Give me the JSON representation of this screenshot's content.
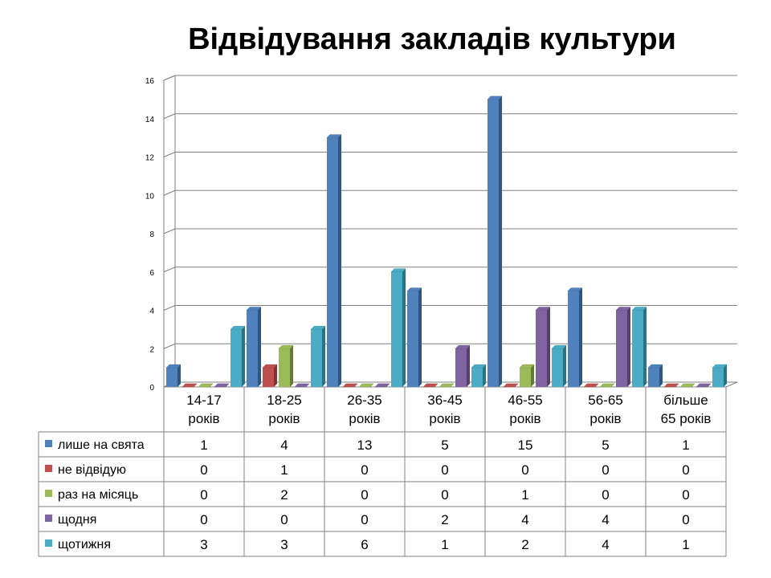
{
  "chart_data": {
    "type": "bar",
    "title": "Відвідування закладів культури",
    "categories": [
      [
        "14-17",
        "років"
      ],
      [
        "18-25",
        "років"
      ],
      [
        "26-35",
        "років"
      ],
      [
        "36-45",
        "років"
      ],
      [
        "46-55",
        "років"
      ],
      [
        "56-65",
        "років"
      ],
      [
        "більше",
        "65 років"
      ]
    ],
    "series": [
      {
        "name": "лише на свята",
        "color": "#4f81bd",
        "values": [
          1,
          4,
          13,
          5,
          15,
          5,
          1
        ]
      },
      {
        "name": "не відвідую",
        "color": "#c0504d",
        "values": [
          0,
          1,
          0,
          0,
          0,
          0,
          0
        ]
      },
      {
        "name": "раз на місяць",
        "color": "#9bbb59",
        "values": [
          0,
          2,
          0,
          0,
          1,
          0,
          0
        ]
      },
      {
        "name": "щодня",
        "color": "#8064a2",
        "values": [
          0,
          0,
          0,
          2,
          4,
          4,
          0
        ]
      },
      {
        "name": "щотижня",
        "color": "#4bacc6",
        "values": [
          3,
          3,
          6,
          1,
          2,
          4,
          1
        ]
      }
    ],
    "yticks": [
      "0",
      "2",
      "4",
      "6",
      "8",
      "10",
      "12",
      "14",
      "16"
    ],
    "ylim": [
      0,
      16
    ],
    "grid": true,
    "legend": "data-table"
  }
}
